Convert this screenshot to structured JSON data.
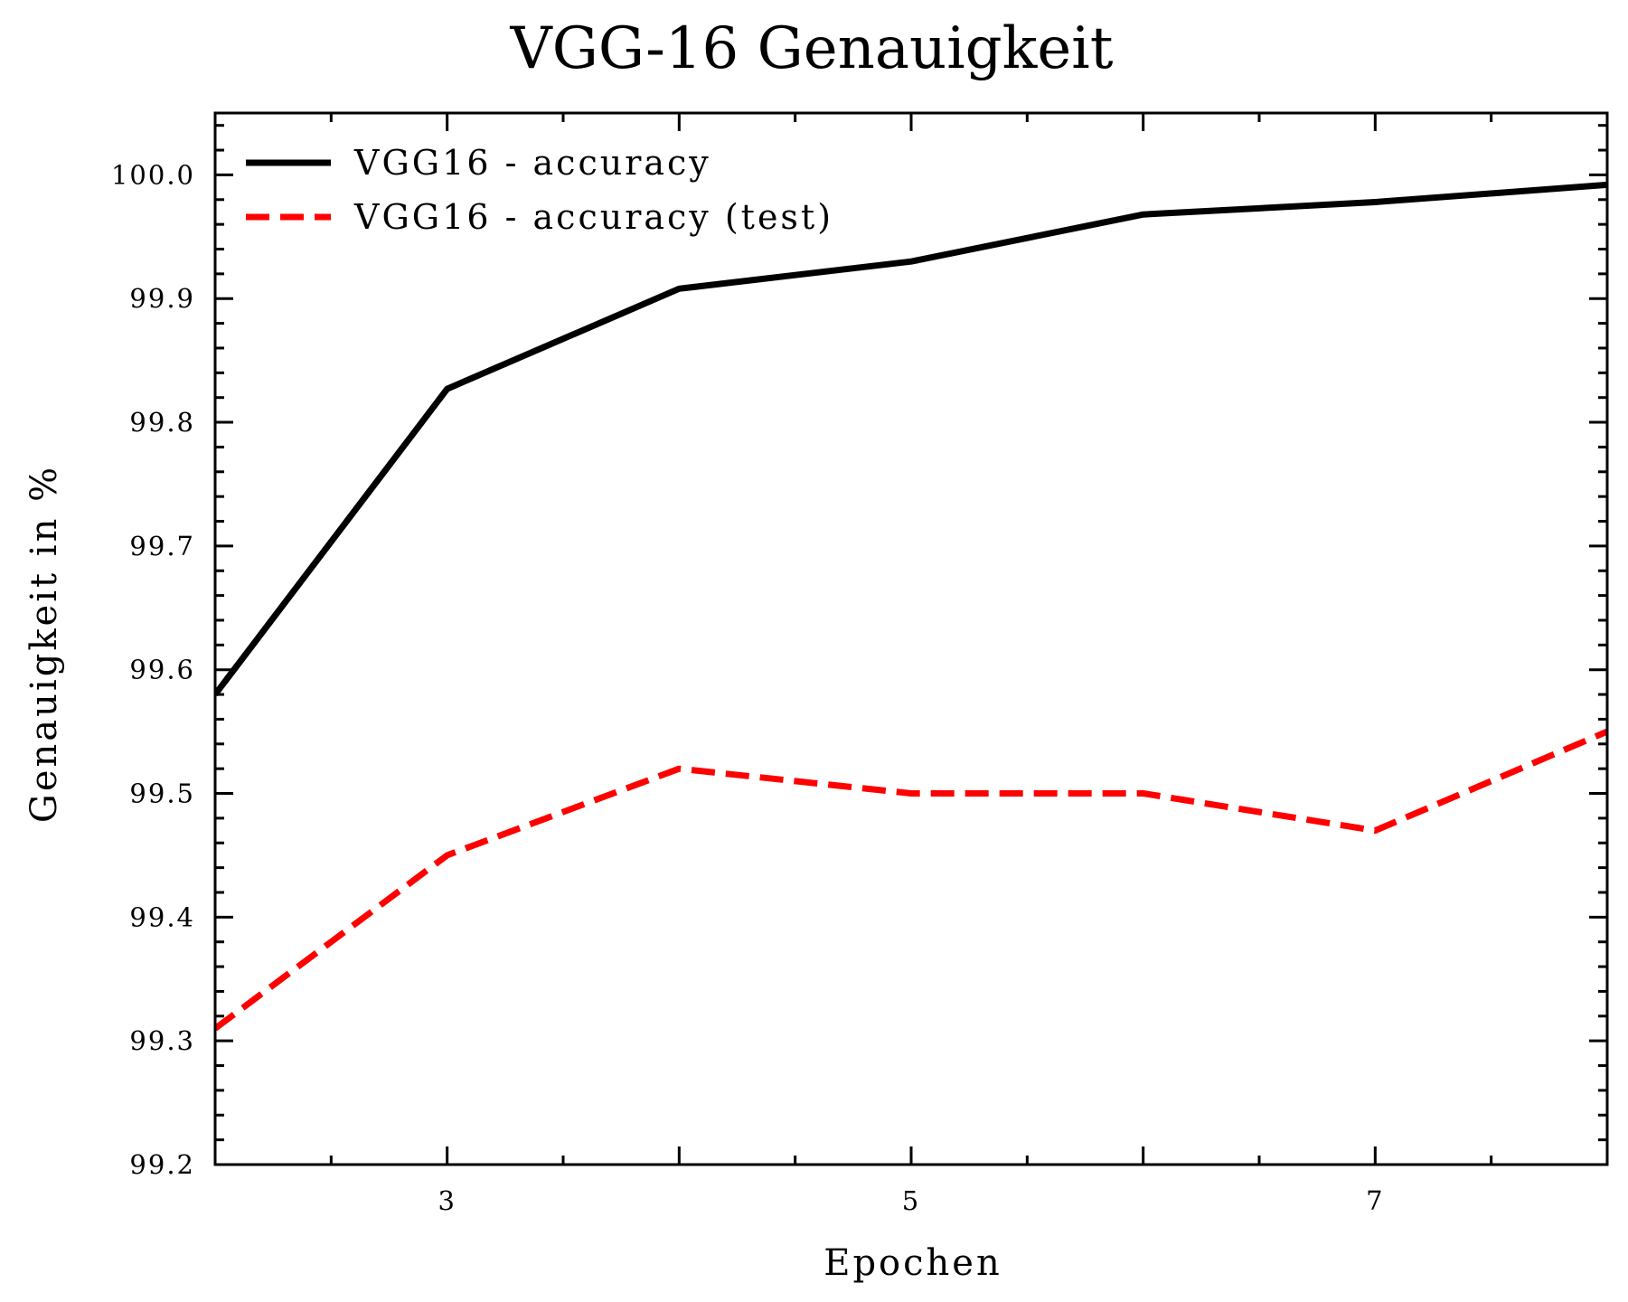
{
  "chart_data": {
    "type": "line",
    "title": "VGG-16 Genauigkeit",
    "xlabel": "Epochen",
    "ylabel": "Genauigkeit in %",
    "xlim": [
      2,
      8
    ],
    "ylim": [
      99.2,
      100.05
    ],
    "x_ticks": [
      3,
      5,
      7
    ],
    "y_ticks": [
      99.2,
      99.3,
      99.4,
      99.5,
      99.6,
      99.7,
      99.8,
      99.9,
      100.0
    ],
    "y_tick_labels": [
      "99.2",
      "99.3",
      "99.4",
      "99.5",
      "99.6",
      "99.7",
      "99.8",
      "99.9",
      "100.0"
    ],
    "grid": false,
    "legend_position": "top-left",
    "x": [
      2,
      3,
      4,
      5,
      6,
      7,
      8
    ],
    "series": [
      {
        "name": "VGG16 - accuracy",
        "values": [
          99.58,
          99.827,
          99.908,
          99.93,
          99.968,
          99.978,
          99.992
        ],
        "color": "#000000",
        "style": "solid"
      },
      {
        "name": "VGG16 - accuracy (test)",
        "values": [
          99.31,
          99.45,
          99.52,
          99.5,
          99.5,
          99.47,
          99.55
        ],
        "color": "#ff0000",
        "style": "dashed"
      }
    ]
  }
}
